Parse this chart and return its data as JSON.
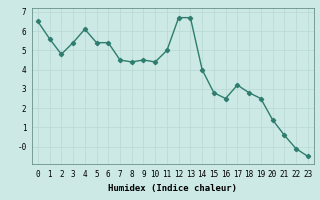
{
  "xlabel": "Humidex (Indice chaleur)",
  "x": [
    0,
    1,
    2,
    3,
    4,
    5,
    6,
    7,
    8,
    9,
    10,
    11,
    12,
    13,
    14,
    15,
    16,
    17,
    18,
    19,
    20,
    21,
    22,
    23
  ],
  "y": [
    6.5,
    5.6,
    4.8,
    5.4,
    6.1,
    5.4,
    5.4,
    4.5,
    4.4,
    4.5,
    4.4,
    5.0,
    6.7,
    6.7,
    4.0,
    2.8,
    2.5,
    3.2,
    2.8,
    2.5,
    1.4,
    0.6,
    -0.1,
    -0.5
  ],
  "ylim": [
    -0.9,
    7.2
  ],
  "xlim": [
    -0.5,
    23.5
  ],
  "ytick_labels": [
    "-0",
    "1",
    "2",
    "3",
    "4",
    "5",
    "6",
    "7"
  ],
  "ytick_vals": [
    0,
    1,
    2,
    3,
    4,
    5,
    6,
    7
  ],
  "line_color": "#2e7d6e",
  "marker": "D",
  "marker_size": 2.2,
  "line_width": 1.0,
  "bg_color": "#cce9e5",
  "grid_color": "#b8d8d4",
  "xlabel_fontsize": 6.5,
  "tick_fontsize": 5.5
}
